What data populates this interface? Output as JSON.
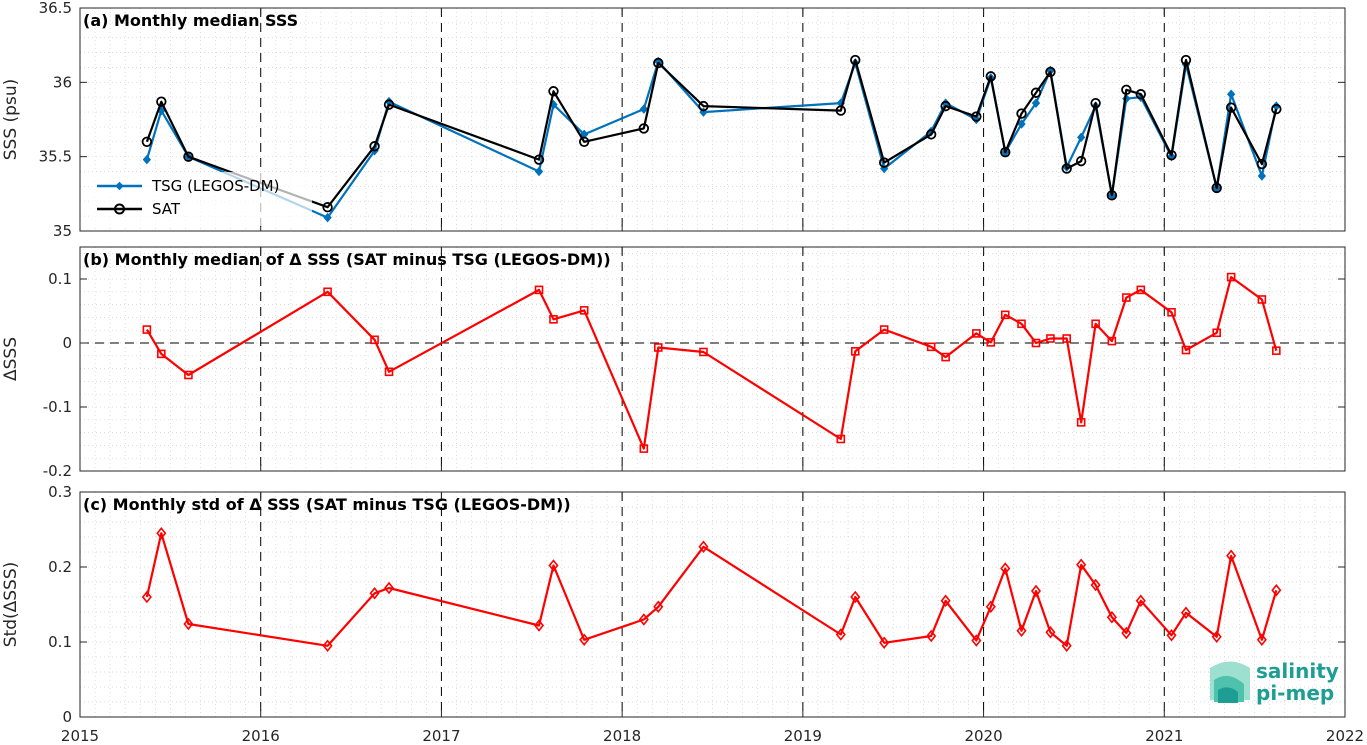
{
  "chart_data": [
    {
      "type": "line",
      "title": "(a) Monthly median SSS",
      "ylabel": "SSS (psu)",
      "xlim": [
        2015,
        2022
      ],
      "ylim": [
        35,
        36.5
      ],
      "yticks": [
        35,
        35.5,
        36,
        36.5
      ],
      "ytick_labels": [
        "35",
        "35.5",
        "36",
        "36.5"
      ],
      "grid": "dotted minor grid, dashed year lines",
      "legend_position": "lower-left",
      "series": [
        {
          "name": "TSG (LEGOS-DM)",
          "color": "#0072BD",
          "marker": "filled-diamond",
          "x": [
            2015.37,
            2015.45,
            2015.6,
            2016.37,
            2016.63,
            2016.71,
            2017.54,
            2017.62,
            2017.79,
            2018.12,
            2018.2,
            2018.45,
            2019.21,
            2019.29,
            2019.45,
            2019.71,
            2019.79,
            2019.96,
            2020.04,
            2020.12,
            2020.21,
            2020.29,
            2020.37,
            2020.46,
            2020.54,
            2020.62,
            2020.71,
            2020.79,
            2020.87,
            2021.04,
            2021.12,
            2021.29,
            2021.37,
            2021.54,
            2021.62
          ],
          "y": [
            35.48,
            35.81,
            35.5,
            35.09,
            35.54,
            35.87,
            35.4,
            35.85,
            35.65,
            35.82,
            36.14,
            35.8,
            35.86,
            36.13,
            35.42,
            35.67,
            35.86,
            35.75,
            36.03,
            35.53,
            35.72,
            35.86,
            36.08,
            35.43,
            35.63,
            35.84,
            35.24,
            35.89,
            35.9,
            35.5,
            36.12,
            35.29,
            35.92,
            35.37,
            35.84
          ]
        },
        {
          "name": "SAT",
          "color": "#000000",
          "marker": "open-circle",
          "x": [
            2015.37,
            2015.45,
            2015.6,
            2016.37,
            2016.63,
            2016.71,
            2017.54,
            2017.62,
            2017.79,
            2018.12,
            2018.2,
            2018.45,
            2019.21,
            2019.29,
            2019.45,
            2019.71,
            2019.79,
            2019.96,
            2020.04,
            2020.12,
            2020.21,
            2020.29,
            2020.37,
            2020.46,
            2020.54,
            2020.62,
            2020.71,
            2020.79,
            2020.87,
            2021.04,
            2021.12,
            2021.29,
            2021.37,
            2021.54,
            2021.62
          ],
          "y": [
            35.6,
            35.87,
            35.5,
            35.16,
            35.57,
            35.85,
            35.48,
            35.94,
            35.6,
            35.69,
            36.13,
            35.84,
            35.81,
            36.15,
            35.46,
            35.65,
            35.84,
            35.77,
            36.04,
            35.53,
            35.79,
            35.93,
            36.07,
            35.42,
            35.47,
            35.86,
            35.24,
            35.95,
            35.92,
            35.51,
            36.15,
            35.29,
            35.83,
            35.45,
            35.82
          ]
        }
      ]
    },
    {
      "type": "line",
      "title": "(b) Monthly median of Δ SSS (SAT minus TSG (LEGOS-DM))",
      "ylabel": "ΔSSS",
      "xlim": [
        2015,
        2022
      ],
      "ylim": [
        -0.2,
        0.15
      ],
      "yticks": [
        -0.2,
        -0.1,
        0,
        0.1
      ],
      "ytick_labels": [
        "-0.2",
        "-0.1",
        "0",
        "0.1"
      ],
      "zero_line": "dashed",
      "series": [
        {
          "name": "",
          "color": "#FF0000",
          "marker": "open-square",
          "x": [
            2015.37,
            2015.45,
            2015.6,
            2016.37,
            2016.63,
            2016.71,
            2017.54,
            2017.62,
            2017.79,
            2018.12,
            2018.2,
            2018.45,
            2019.21,
            2019.29,
            2019.45,
            2019.71,
            2019.79,
            2019.96,
            2020.04,
            2020.12,
            2020.21,
            2020.29,
            2020.37,
            2020.46,
            2020.54,
            2020.62,
            2020.71,
            2020.79,
            2020.87,
            2021.04,
            2021.12,
            2021.29,
            2021.37,
            2021.54,
            2021.62
          ],
          "y": [
            0.021,
            -0.017,
            -0.05,
            0.08,
            0.005,
            -0.045,
            0.083,
            0.037,
            0.051,
            -0.165,
            -0.007,
            -0.014,
            -0.15,
            -0.013,
            0.021,
            -0.006,
            -0.022,
            0.015,
            0.001,
            0.044,
            0.03,
            0.0,
            0.007,
            0.007,
            -0.124,
            0.03,
            0.003,
            0.071,
            0.083,
            0.048,
            -0.011,
            0.016,
            0.103,
            0.068,
            -0.012
          ]
        }
      ]
    },
    {
      "type": "line",
      "title": "(c) Monthly std of Δ SSS (SAT minus TSG (LEGOS-DM))",
      "ylabel": "Std(ΔSSS)",
      "xlim": [
        2015,
        2022
      ],
      "ylim": [
        0,
        0.3
      ],
      "yticks": [
        0,
        0.1,
        0.2,
        0.3
      ],
      "ytick_labels": [
        "0",
        "0.1",
        "0.2",
        "0.3"
      ],
      "xticks": [
        2015,
        2016,
        2017,
        2018,
        2019,
        2020,
        2021,
        2022
      ],
      "xtick_labels": [
        "2015",
        "2016",
        "2017",
        "2018",
        "2019",
        "2020",
        "2021",
        "2022"
      ],
      "series": [
        {
          "name": "",
          "color": "#FF0000",
          "marker": "open-diamond",
          "x": [
            2015.37,
            2015.45,
            2015.6,
            2016.37,
            2016.63,
            2016.71,
            2017.54,
            2017.62,
            2017.79,
            2018.12,
            2018.2,
            2018.45,
            2019.21,
            2019.29,
            2019.45,
            2019.71,
            2019.79,
            2019.96,
            2020.04,
            2020.12,
            2020.21,
            2020.29,
            2020.37,
            2020.46,
            2020.54,
            2020.62,
            2020.71,
            2020.79,
            2020.87,
            2021.04,
            2021.12,
            2021.29,
            2021.37,
            2021.54,
            2021.62
          ],
          "y": [
            0.16,
            0.245,
            0.124,
            0.095,
            0.165,
            0.172,
            0.122,
            0.202,
            0.103,
            0.13,
            0.147,
            0.227,
            0.11,
            0.16,
            0.099,
            0.108,
            0.155,
            0.102,
            0.147,
            0.198,
            0.115,
            0.168,
            0.113,
            0.095,
            0.203,
            0.176,
            0.133,
            0.112,
            0.155,
            0.109,
            0.139,
            0.107,
            0.215,
            0.103,
            0.169
          ]
        }
      ]
    }
  ],
  "logo": {
    "line1": "salinity",
    "line2": "pi-mep"
  }
}
